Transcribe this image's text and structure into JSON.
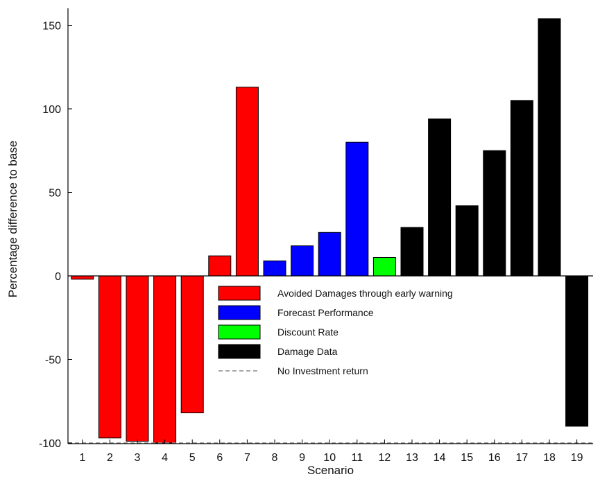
{
  "chart_data": {
    "type": "bar",
    "title": "",
    "xlabel": "Scenario",
    "ylabel": "Percentage difference to base",
    "ylim": [
      -100,
      160
    ],
    "yticks": [
      -100,
      -50,
      0,
      50,
      100,
      150
    ],
    "ytick_labels": [
      "-100",
      "-50",
      "0",
      "50",
      "100",
      "150"
    ],
    "categories": [
      "1",
      "2",
      "3",
      "4",
      "5",
      "6",
      "7",
      "8",
      "9",
      "10",
      "11",
      "12",
      "13",
      "14",
      "15",
      "16",
      "17",
      "18",
      "19"
    ],
    "values": [
      -2,
      -97,
      -99,
      -100,
      -82,
      12,
      113,
      9,
      18,
      26,
      80,
      11,
      29,
      94,
      42,
      75,
      105,
      154,
      -90
    ],
    "groups": [
      "avoided",
      "avoided",
      "avoided",
      "avoided",
      "avoided",
      "avoided",
      "avoided",
      "forecast",
      "forecast",
      "forecast",
      "forecast",
      "discount",
      "damage",
      "damage",
      "damage",
      "damage",
      "damage",
      "damage",
      "damage"
    ],
    "grid": false,
    "legend_position": "center",
    "legend": [
      {
        "key": "avoided",
        "label": "Avoided Damages through early warning",
        "color": "#ff0000",
        "style": "box"
      },
      {
        "key": "forecast",
        "label": "Forecast Performance",
        "color": "#0000ff",
        "style": "box"
      },
      {
        "key": "discount",
        "label": "Discount Rate",
        "color": "#00ff00",
        "style": "box"
      },
      {
        "key": "damage",
        "label": "Damage Data",
        "color": "#000000",
        "style": "box"
      },
      {
        "key": "noinvest",
        "label": "No Investment return",
        "color": "#888888",
        "style": "dashed"
      }
    ],
    "reference_line": {
      "y": -100,
      "style": "dashed",
      "color": "#888888"
    }
  }
}
